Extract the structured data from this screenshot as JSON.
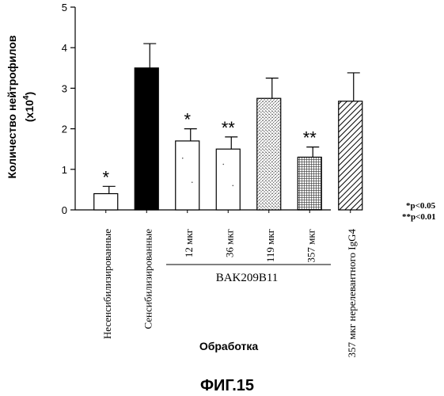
{
  "chart_data": {
    "type": "bar",
    "categories": [
      "Несенсибилизированные",
      "Сенсибилизированные",
      "12 мкг",
      "36 мкг",
      "119 мкг",
      "357 мкг",
      "357 мкг нерелевантного IgG4"
    ],
    "values": [
      0.4,
      3.5,
      1.7,
      1.5,
      2.75,
      1.3,
      2.68
    ],
    "errors": [
      0.18,
      0.6,
      0.3,
      0.3,
      0.5,
      0.25,
      0.7
    ],
    "significance": [
      "*",
      "",
      "*",
      "**",
      "",
      "**",
      ""
    ],
    "fills": [
      "white",
      "black",
      "white",
      "white",
      "stipple",
      "crosshatch",
      "diagonal"
    ],
    "group_label": "BAK209B11",
    "title": "",
    "ylabel_line1": "Количество  нейтрофилов",
    "ylabel_line2": "(x10",
    "ylabel_sup": "4",
    "ylabel_end": ")",
    "xlabel": "Обработка",
    "ylim": [
      0,
      5
    ],
    "yticks": [
      0,
      1,
      2,
      3,
      4,
      5
    ],
    "p_notes": [
      "*p<0.05",
      "**p<0.01"
    ],
    "figure_caption": "ФИГ.15"
  }
}
